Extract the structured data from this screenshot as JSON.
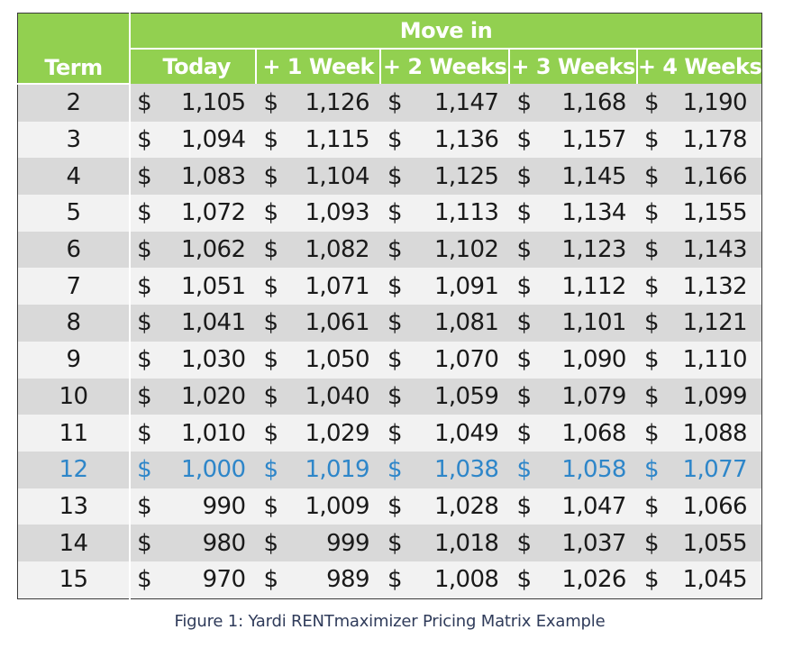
{
  "table": {
    "group_header": "Move in",
    "term_header": "Term",
    "columns": [
      "Today",
      "+ 1 Week",
      "+ 2 Weeks",
      "+ 3 Weeks",
      "+ 4 Weeks"
    ],
    "currency_symbol": "$",
    "highlight_term": "12",
    "highlight_color": "#2e86c9",
    "header_color": "#92d050",
    "rows": [
      {
        "term": "2",
        "values": [
          "1,105",
          "1,126",
          "1,147",
          "1,168",
          "1,190"
        ]
      },
      {
        "term": "3",
        "values": [
          "1,094",
          "1,115",
          "1,136",
          "1,157",
          "1,178"
        ]
      },
      {
        "term": "4",
        "values": [
          "1,083",
          "1,104",
          "1,125",
          "1,145",
          "1,166"
        ]
      },
      {
        "term": "5",
        "values": [
          "1,072",
          "1,093",
          "1,113",
          "1,134",
          "1,155"
        ]
      },
      {
        "term": "6",
        "values": [
          "1,062",
          "1,082",
          "1,102",
          "1,123",
          "1,143"
        ]
      },
      {
        "term": "7",
        "values": [
          "1,051",
          "1,071",
          "1,091",
          "1,112",
          "1,132"
        ]
      },
      {
        "term": "8",
        "values": [
          "1,041",
          "1,061",
          "1,081",
          "1,101",
          "1,121"
        ]
      },
      {
        "term": "9",
        "values": [
          "1,030",
          "1,050",
          "1,070",
          "1,090",
          "1,110"
        ]
      },
      {
        "term": "10",
        "values": [
          "1,020",
          "1,040",
          "1,059",
          "1,079",
          "1,099"
        ]
      },
      {
        "term": "11",
        "values": [
          "1,010",
          "1,029",
          "1,049",
          "1,068",
          "1,088"
        ]
      },
      {
        "term": "12",
        "values": [
          "1,000",
          "1,019",
          "1,038",
          "1,058",
          "1,077"
        ]
      },
      {
        "term": "13",
        "values": [
          "990",
          "1,009",
          "1,028",
          "1,047",
          "1,066"
        ]
      },
      {
        "term": "14",
        "values": [
          "980",
          "999",
          "1,018",
          "1,037",
          "1,055"
        ]
      },
      {
        "term": "15",
        "values": [
          "970",
          "989",
          "1,008",
          "1,026",
          "1,045"
        ]
      }
    ]
  },
  "caption": "Figure 1: Yardi RENTmaximizer Pricing Matrix Example"
}
